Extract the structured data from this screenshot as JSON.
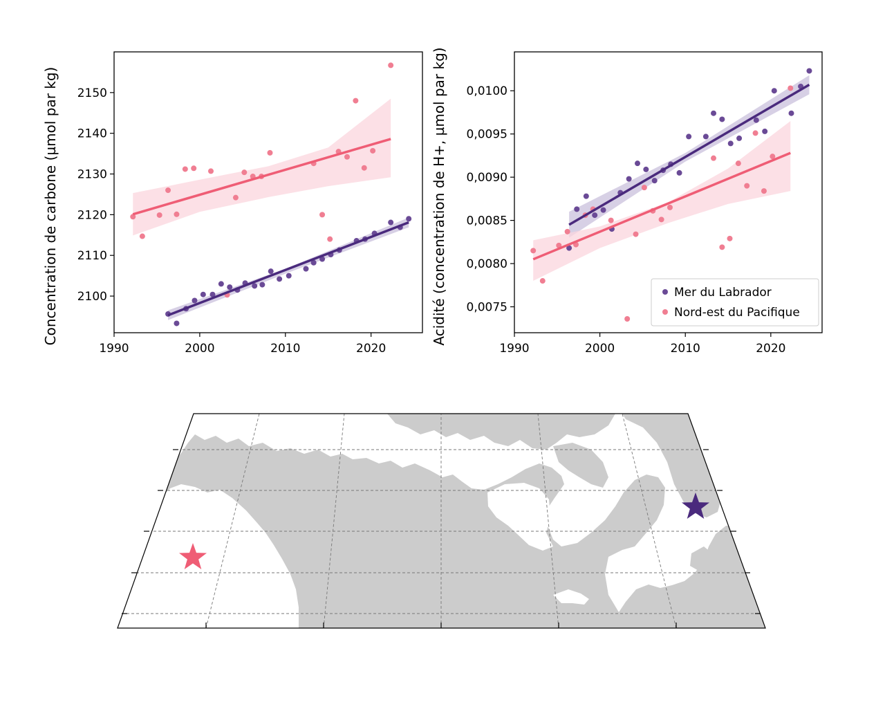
{
  "colors": {
    "labrador": "#4a2a7d",
    "labrador_point": "#6a4a96",
    "labrador_band": "#c9c0dc",
    "pacific": "#ef5d75",
    "pacific_point": "#f07e92",
    "pacific_band": "#fbd6dd",
    "land": "#cccccc",
    "graticule": "#777777"
  },
  "chart_data": [
    {
      "type": "scatter",
      "title": "",
      "xlabel": "",
      "ylabel": "Concentration de carbone (µmol par kg)",
      "xlim": [
        1990,
        2026
      ],
      "ylim": [
        2091,
        2160
      ],
      "xticks": [
        1990,
        2000,
        2010,
        2020
      ],
      "yticks": [
        2100,
        2110,
        2120,
        2130,
        2140,
        2150
      ],
      "ytick_labels": [
        "2100",
        "2110",
        "2120",
        "2130",
        "2140",
        "2150"
      ],
      "grid": false,
      "series": [
        {
          "key": "pacific",
          "x": [
            1992.2,
            1993.3,
            1995.3,
            1996.3,
            1997.3,
            1998.3,
            1999.3,
            2001.3,
            2003.2,
            2004.2,
            2005.2,
            2006.2,
            2007.2,
            2008.2,
            2013.3,
            2014.3,
            2015.2,
            2016.2,
            2017.2,
            2018.2,
            2019.2,
            2020.2,
            2022.3
          ],
          "y": [
            2119.5,
            2114.7,
            2119.9,
            2126.0,
            2120.1,
            2131.2,
            2131.4,
            2130.7,
            2100.3,
            2124.2,
            2130.4,
            2129.4,
            2129.4,
            2135.2,
            2132.6,
            2120.0,
            2114.0,
            2135.5,
            2134.2,
            2148.0,
            2131.5,
            2135.7,
            2156.7
          ],
          "fit": {
            "x": [
              1992.2,
              2022.3
            ],
            "y": [
              2120.1,
              2138.6
            ]
          },
          "band": {
            "x": [
              1992.2,
              2000,
              2008,
              2015,
              2022.3
            ],
            "upper": [
              2125.3,
              2128.6,
              2131.9,
              2136.5,
              2148.5
            ],
            "lower": [
              2114.9,
              2120.7,
              2124.3,
              2127.0,
              2129.2
            ]
          }
        },
        {
          "key": "labrador",
          "x": [
            1996.3,
            1997.3,
            1998.4,
            1999.4,
            2000.4,
            2001.5,
            2002.5,
            2003.5,
            2004.4,
            2005.3,
            2006.4,
            2007.3,
            2008.3,
            2009.3,
            2010.4,
            2012.4,
            2013.3,
            2014.3,
            2015.3,
            2016.3,
            2018.3,
            2019.3,
            2020.4,
            2022.3,
            2023.4,
            2024.4
          ],
          "y": [
            2095.6,
            2093.3,
            2096.9,
            2098.9,
            2100.4,
            2100.4,
            2103.0,
            2102.2,
            2101.5,
            2103.2,
            2102.5,
            2102.8,
            2106.1,
            2104.2,
            2105.0,
            2106.7,
            2108.2,
            2109.1,
            2110.2,
            2111.3,
            2113.6,
            2114.0,
            2115.4,
            2118.1,
            2116.9,
            2119.0
          ],
          "fit": {
            "x": [
              1996.3,
              2024.4
            ],
            "y": [
              2095.3,
              2118.1
            ]
          },
          "band": {
            "x": [
              1996.3,
              2010,
              2024.4
            ],
            "upper": [
              2096.5,
              2106.7,
              2119.3
            ],
            "lower": [
              2094.1,
              2105.5,
              2116.9
            ]
          }
        }
      ]
    },
    {
      "type": "scatter",
      "title": "",
      "xlabel": "",
      "ylabel": "Acidité (concentration de H+, µmol par kg)",
      "xlim": [
        1990,
        2026
      ],
      "ylim": [
        0.0072,
        0.01045
      ],
      "xticks": [
        1990,
        2000,
        2010,
        2020
      ],
      "yticks": [
        0.0075,
        0.008,
        0.0085,
        0.009,
        0.0095,
        0.01
      ],
      "ytick_labels": [
        "0,0075",
        "0,0080",
        "0,0085",
        "0,0090",
        "0,0095",
        "0,0100"
      ],
      "grid": false,
      "legend": {
        "placement": "bottom-right",
        "entries": [
          "Mer du Labrador",
          "Nord-est du Pacifique"
        ]
      },
      "series": [
        {
          "key": "labrador",
          "name": "Mer du Labrador",
          "x": [
            1996.4,
            1997.3,
            1998.4,
            1999.4,
            2000.4,
            2001.4,
            2002.4,
            2003.4,
            2004.4,
            2005.4,
            2006.4,
            2007.4,
            2008.3,
            2009.3,
            2010.4,
            2012.4,
            2013.3,
            2014.3,
            2015.3,
            2016.3,
            2018.3,
            2019.3,
            2020.4,
            2022.4,
            2023.5,
            2024.5
          ],
          "y": [
            0.00818,
            0.00863,
            0.00878,
            0.00856,
            0.00862,
            0.0084,
            0.00882,
            0.00898,
            0.00916,
            0.00909,
            0.00896,
            0.00908,
            0.00915,
            0.00905,
            0.00947,
            0.00947,
            0.00974,
            0.00967,
            0.00939,
            0.00945,
            0.00966,
            0.00953,
            0.01,
            0.00974,
            0.01005,
            0.01023
          ],
          "fit": {
            "x": [
              1996.4,
              2024.5
            ],
            "y": [
              0.00845,
              0.01007
            ]
          },
          "band": {
            "x": [
              1996.4,
              2010,
              2024.5
            ],
            "upper": [
              0.0086,
              0.00928,
              0.01018
            ],
            "lower": [
              0.0083,
              0.00918,
              0.00996
            ]
          }
        },
        {
          "key": "pacific",
          "name": "Nord-est du Pacifique",
          "x": [
            1992.2,
            1993.3,
            1995.2,
            1996.2,
            1997.2,
            1998.3,
            1999.2,
            2001.3,
            2003.2,
            2004.2,
            2005.2,
            2006.2,
            2007.2,
            2008.2,
            2013.3,
            2014.3,
            2015.2,
            2016.2,
            2017.2,
            2018.2,
            2019.2,
            2020.2,
            2022.3
          ],
          "y": [
            0.00815,
            0.0078,
            0.00821,
            0.00837,
            0.00822,
            0.00856,
            0.00863,
            0.0085,
            0.00736,
            0.00834,
            0.00888,
            0.00861,
            0.00851,
            0.00865,
            0.00922,
            0.00819,
            0.00829,
            0.00916,
            0.0089,
            0.00951,
            0.00884,
            0.00924,
            0.01003
          ],
          "fit": {
            "x": [
              1992.2,
              2022.3
            ],
            "y": [
              0.00805,
              0.00928
            ]
          },
          "band": {
            "x": [
              1992.2,
              2000,
              2008,
              2015,
              2022.3
            ],
            "upper": [
              0.00827,
              0.00843,
              0.00871,
              0.0091,
              0.00965
            ],
            "lower": [
              0.0078,
              0.00818,
              0.00847,
              0.00869,
              0.00884
            ]
          }
        }
      ]
    }
  ],
  "map": {
    "type": "map",
    "markers": [
      {
        "key": "pacific",
        "site": "Nord-est du Pacifique",
        "shape": "star"
      },
      {
        "key": "labrador",
        "site": "Mer du Labrador",
        "shape": "star"
      }
    ]
  }
}
